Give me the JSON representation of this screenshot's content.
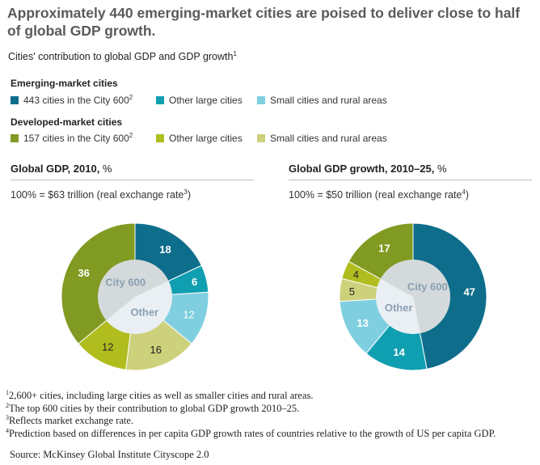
{
  "title": "Approximately 440 emerging-market cities are poised to deliver close to half of global GDP growth.",
  "subtitle": "Cities' contribution to global GDP and GDP growth",
  "subtitle_sup": "1",
  "legend": {
    "emerging": {
      "heading": "Emerging-market cities",
      "items": [
        {
          "label": "443 cities in the City 600",
          "sup": "2",
          "color": "#0f6d8c"
        },
        {
          "label": "Other large cities",
          "sup": "",
          "color": "#0f9fb0"
        },
        {
          "label": "Small cities and rural areas",
          "sup": "",
          "color": "#7fcfe0"
        }
      ]
    },
    "developed": {
      "heading": "Developed-market cities",
      "items": [
        {
          "label": "157 cities in the City 600",
          "sup": "2",
          "color": "#819a22"
        },
        {
          "label": "Other large cities",
          "sup": "",
          "color": "#b1bd1f"
        },
        {
          "label": "Small cities and rural areas",
          "sup": "",
          "color": "#cdd17c"
        }
      ]
    }
  },
  "panels": [
    {
      "heading": "Global GDP, 2010,",
      "unit": " %",
      "note": "100% = $63 trillion (real exchange rate",
      "note_sup": "3",
      "note_end": ")"
    },
    {
      "heading": "Global GDP growth, 2010–25,",
      "unit": " %",
      "note": "100% = $50 trillion (real exchange rate",
      "note_sup": "4",
      "note_end": ")"
    }
  ],
  "chart_data": [
    {
      "type": "pie",
      "title": "Global GDP, 2010, %",
      "subtitle": "100% = $63 trillion (real exchange rate)",
      "inner_labels": [
        "City 600",
        "Other"
      ],
      "categories": [
        "Emerging-market: 443 cities in the City 600",
        "Emerging-market: Other large cities",
        "Emerging-market: Small cities and rural areas",
        "Developed-market: Small cities and rural areas",
        "Developed-market: Other large cities",
        "Developed-market: 157 cities in the City 600"
      ],
      "values": [
        18,
        6,
        12,
        16,
        12,
        36
      ],
      "colors": [
        "#0f6d8c",
        "#0f9fb0",
        "#7fcfe0",
        "#cdd17c",
        "#b1bd1f",
        "#819a22"
      ],
      "label_colors": [
        "#ffffff",
        "#ffffff",
        "#ffffff",
        "#222222",
        "#222222",
        "#ffffff"
      ],
      "label_bold": [
        true,
        true,
        false,
        false,
        false,
        true
      ]
    },
    {
      "type": "pie",
      "title": "Global GDP growth, 2010–25, %",
      "subtitle": "100% = $50 trillion (real exchange rate)",
      "inner_labels": [
        "City 600",
        "Other"
      ],
      "categories": [
        "Emerging-market: 443 cities in the City 600",
        "Emerging-market: Other large cities",
        "Emerging-market: Small cities and rural areas",
        "Developed-market: Small cities and rural areas",
        "Developed-market: Other large cities",
        "Developed-market: 157 cities in the City 600"
      ],
      "values": [
        47,
        14,
        13,
        5,
        4,
        17
      ],
      "colors": [
        "#0f6d8c",
        "#0f9fb0",
        "#7fcfe0",
        "#cdd17c",
        "#b1bd1f",
        "#819a22"
      ],
      "label_colors": [
        "#ffffff",
        "#ffffff",
        "#ffffff",
        "#222222",
        "#222222",
        "#ffffff"
      ],
      "label_bold": [
        true,
        true,
        true,
        false,
        false,
        true
      ]
    }
  ],
  "footnotes": [
    {
      "sup": "1",
      "text": "2,600+ cities, including large cities as well as smaller cities and rural areas."
    },
    {
      "sup": "2",
      "text": "The top 600 cities by their contribution to global GDP growth 2010–25."
    },
    {
      "sup": "3",
      "text": "Reflects market exchange rate."
    },
    {
      "sup": "4",
      "text": "Prediction based on differences in per capita GDP growth rates of countries relative to the growth of US per capita GDP."
    }
  ],
  "source": "Source: McKinsey Global Institute Cityscope 2.0"
}
